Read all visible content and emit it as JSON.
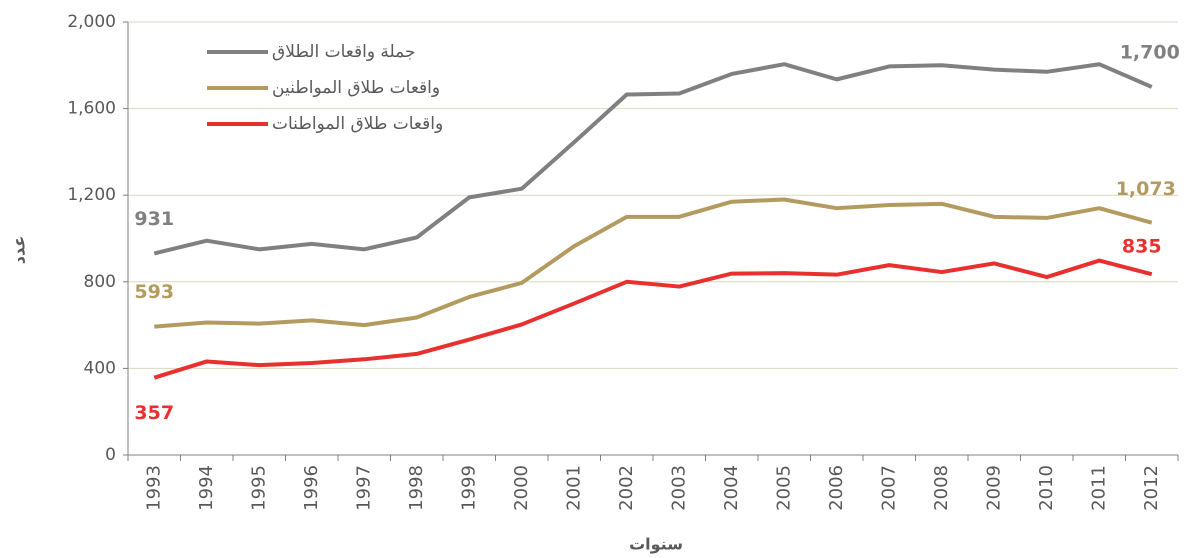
{
  "chart_data": {
    "type": "line",
    "x_label": "سنوات",
    "y_label": "عدد",
    "categories": [
      "1993",
      "1994",
      "1995",
      "1996",
      "1997",
      "1998",
      "1999",
      "2000",
      "2001",
      "2002",
      "2003",
      "2004",
      "2005",
      "2006",
      "2007",
      "2008",
      "2009",
      "2010",
      "2011",
      "2012"
    ],
    "series": [
      {
        "name": "جملة واقعات الطلاق",
        "color": "#808080",
        "values": [
          931,
          990,
          950,
          975,
          950,
          1005,
          1190,
          1230,
          1445,
          1665,
          1670,
          1760,
          1805,
          1735,
          1795,
          1800,
          1780,
          1770,
          1805,
          1700
        ],
        "value_labels": [
          "931",
          null,
          null,
          null,
          null,
          null,
          null,
          null,
          null,
          null,
          null,
          null,
          null,
          null,
          null,
          null,
          null,
          null,
          null,
          "1,700"
        ]
      },
      {
        "name": "واقعات طلاق المواطنين",
        "color": "#b39b60",
        "values": [
          593,
          612,
          607,
          622,
          600,
          635,
          730,
          795,
          965,
          1100,
          1100,
          1170,
          1180,
          1140,
          1155,
          1160,
          1100,
          1095,
          1140,
          1073
        ],
        "value_labels": [
          "593",
          null,
          null,
          null,
          null,
          null,
          null,
          null,
          null,
          null,
          null,
          null,
          null,
          null,
          null,
          null,
          null,
          null,
          null,
          "1,073"
        ]
      },
      {
        "name": "واقعات طلاق المواطنات",
        "color": "#e8302f",
        "values": [
          357,
          432,
          415,
          425,
          442,
          467,
          533,
          603,
          700,
          800,
          778,
          838,
          840,
          833,
          877,
          845,
          885,
          822,
          898,
          835
        ],
        "value_labels": [
          "357",
          null,
          null,
          null,
          null,
          null,
          null,
          null,
          null,
          null,
          null,
          null,
          null,
          null,
          null,
          null,
          null,
          null,
          null,
          "835"
        ]
      }
    ],
    "ylim": [
      0,
      2000
    ],
    "yticks": [
      0,
      400,
      800,
      {
        "value": 1200,
        "label": "1,200"
      },
      {
        "value": 1600,
        "label": "1,600"
      },
      {
        "value": 2000,
        "label": "2,000"
      }
    ],
    "grid": true,
    "legend": "top-left"
  }
}
